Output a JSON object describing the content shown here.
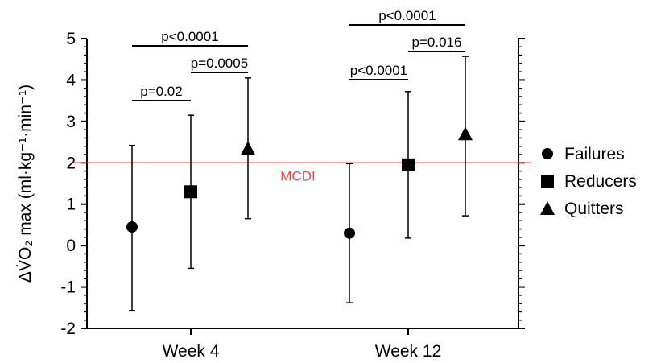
{
  "chart_data": {
    "type": "scatter",
    "ylabel": "ΔV̇O₂ max (ml·kg⁻¹·min⁻¹)",
    "ylim": [
      -2,
      5
    ],
    "yticks": [
      -2,
      -1,
      0,
      1,
      2,
      3,
      4,
      5
    ],
    "grid": false,
    "legend_position": "right",
    "categories": [
      "Week 4",
      "Week 12"
    ],
    "series": [
      {
        "name": "Failures",
        "marker": "circle",
        "values": [
          0.45,
          0.3
        ],
        "err_low": [
          -1.57,
          -1.38
        ],
        "err_high": [
          2.42,
          1.98
        ]
      },
      {
        "name": "Reducers",
        "marker": "square",
        "values": [
          1.3,
          1.95
        ],
        "err_low": [
          -0.55,
          0.18
        ],
        "err_high": [
          3.15,
          3.72
        ]
      },
      {
        "name": "Quitters",
        "marker": "triangle",
        "values": [
          2.35,
          2.7
        ],
        "err_low": [
          0.65,
          0.72
        ],
        "err_high": [
          4.05,
          4.57
        ]
      }
    ],
    "reference_line": {
      "value": 2.0,
      "label": "MCDI",
      "color": "#e8484d"
    },
    "significance": [
      {
        "category": 0,
        "from": 0,
        "to": 1,
        "label": "p=0.02",
        "level": 0
      },
      {
        "category": 0,
        "from": 1,
        "to": 2,
        "label": "p=0.0005",
        "level": 1
      },
      {
        "category": 0,
        "from": 0,
        "to": 2,
        "label": "p<0.0001",
        "level": 2
      },
      {
        "category": 1,
        "from": 0,
        "to": 1,
        "label": "p<0.0001",
        "level": 0
      },
      {
        "category": 1,
        "from": 1,
        "to": 2,
        "label": "p=0.016",
        "level": 1
      },
      {
        "category": 1,
        "from": 0,
        "to": 2,
        "label": "p<0.0001",
        "level": 2
      }
    ]
  }
}
